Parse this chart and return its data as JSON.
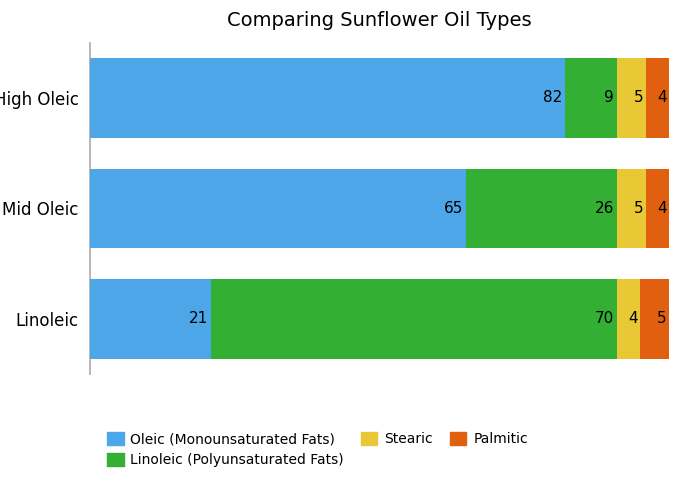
{
  "title": "Comparing Sunflower Oil Types",
  "categories": [
    "High Oleic",
    "Mid Oleic",
    "Linoleic"
  ],
  "series": [
    {
      "name": "Oleic (Monounsaturated Fats)",
      "color": "#4da6e8",
      "values": [
        82,
        65,
        21
      ]
    },
    {
      "name": "Linoleic (Polyunsaturated Fats)",
      "color": "#33b033",
      "values": [
        9,
        26,
        70
      ]
    },
    {
      "name": "Stearic",
      "color": "#e8c835",
      "values": [
        5,
        5,
        4
      ]
    },
    {
      "name": "Palmitic",
      "color": "#e06010",
      "values": [
        4,
        4,
        5
      ]
    }
  ],
  "bar_height": 0.72,
  "label_fontsize": 11,
  "title_fontsize": 14,
  "legend_fontsize": 10,
  "background_color": "#ffffff",
  "grid_color": "#dddddd",
  "xlim": [
    0,
    100
  ]
}
